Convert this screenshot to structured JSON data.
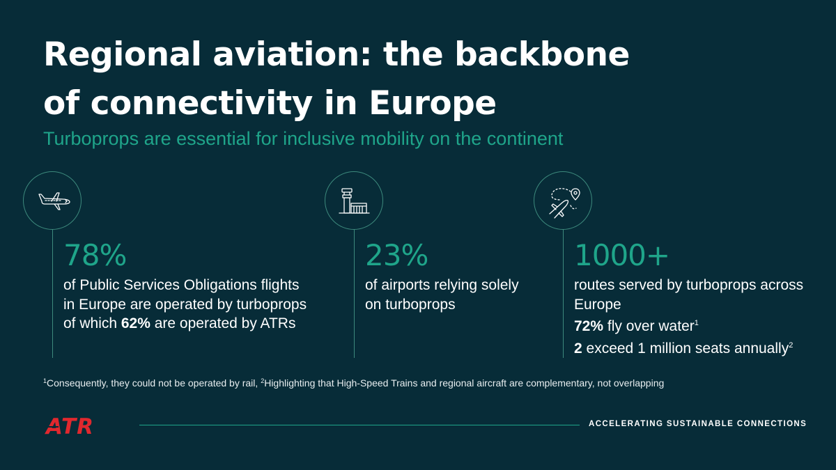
{
  "header": {
    "title_line1": "Regional aviation: the backbone",
    "title_line2": "of connectivity in Europe",
    "subtitle": "Turboprops are essential for inclusive mobility on the continent"
  },
  "stats": [
    {
      "icon": "airplane-icon",
      "value": "78%",
      "text_a": "of Public Services Obligations flights in Europe are operated by turboprops of which ",
      "highlight": "62%",
      "text_b": " are operated by ATRs"
    },
    {
      "icon": "airport-tower-icon",
      "value": "23%",
      "text": "of airports relying solely on turboprops"
    },
    {
      "icon": "route-map-icon",
      "value": "1000+",
      "text": "routes served by turboprops across Europe",
      "line2_bold": "72%",
      "line2_text": " fly over water",
      "line2_sup": "1",
      "line3_bold": "2",
      "line3_text": " exceed 1 million seats annually",
      "line3_sup": "2"
    }
  ],
  "footnote": {
    "sup1": "1",
    "text1": "Consequently, they could not be operated by rail, ",
    "sup2": "2",
    "text2": "Highlighting that High-Speed Trains and regional aircraft are complementary, not overlapping"
  },
  "footer": {
    "logo_text": "ATR",
    "tagline": "ACCELERATING SUSTAINABLE CONNECTIONS"
  },
  "colors": {
    "background": "#072c38",
    "accent": "#1fa58a",
    "logo": "#e0282e",
    "text": "#ffffff"
  }
}
